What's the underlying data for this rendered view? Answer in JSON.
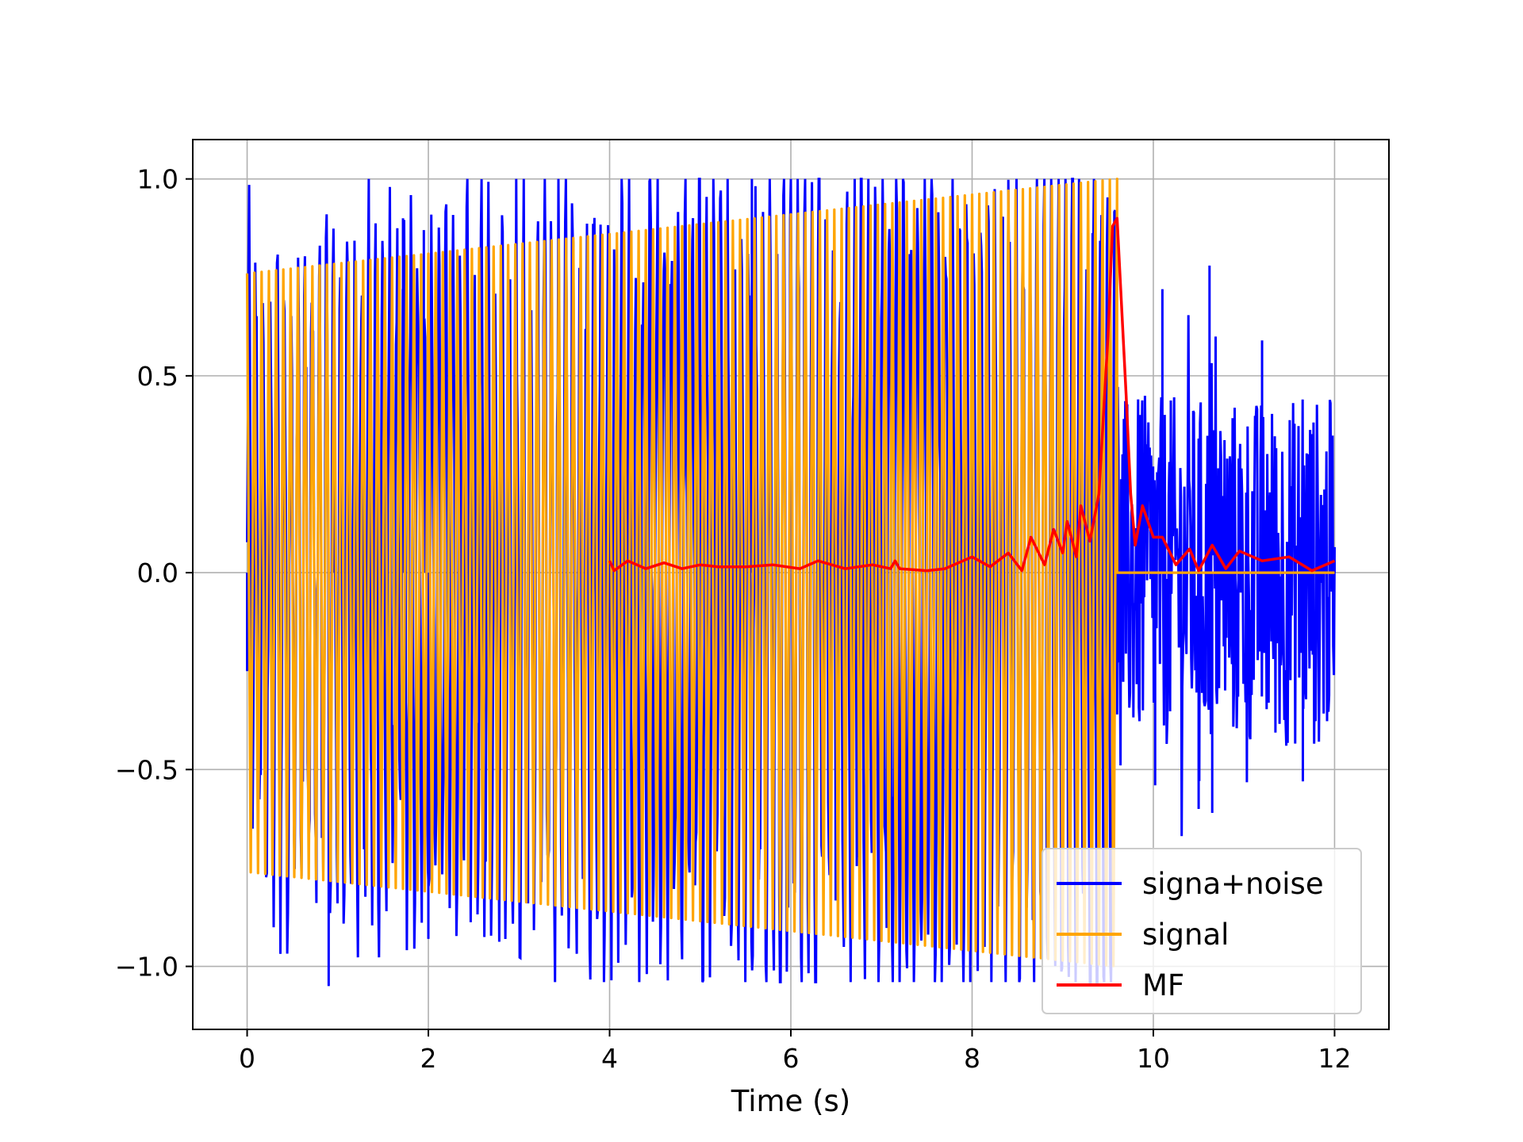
{
  "chart_data": {
    "type": "line",
    "title": "",
    "xlabel": "Time (s)",
    "ylabel": "",
    "xlim": [
      -0.6,
      12.6
    ],
    "ylim": [
      -1.16,
      1.1
    ],
    "xticks": [
      0,
      2,
      4,
      6,
      8,
      10,
      12
    ],
    "xtick_labels": [
      "0",
      "2",
      "4",
      "6",
      "8",
      "10",
      "12"
    ],
    "yticks": [
      -1.0,
      -0.5,
      0.0,
      0.5,
      1.0
    ],
    "ytick_labels": [
      "−1.0",
      "−0.5",
      "0.0",
      "0.5",
      "1.0"
    ],
    "grid": true,
    "legend_position": "lower-right",
    "series": [
      {
        "name": "signa+noise",
        "color": "#0000ff",
        "description_points": [
          [
            0.0,
            -0.25
          ],
          [
            0.9,
            -1.05
          ],
          [
            0.95,
            0.82
          ],
          [
            1.72,
            0.9
          ],
          [
            1.95,
            0.87
          ],
          [
            2.0,
            -0.93
          ],
          [
            3.1,
            -0.84
          ],
          [
            5.57,
            1.0
          ],
          [
            9.6,
            0.27
          ],
          [
            9.6,
            -0.36
          ],
          [
            10.02,
            -0.54
          ],
          [
            10.1,
            0.72
          ],
          [
            10.5,
            -0.6
          ],
          [
            10.62,
            0.78
          ],
          [
            10.65,
            -0.61
          ],
          [
            11.2,
            0.59
          ],
          [
            11.65,
            -0.53
          ],
          [
            12.0,
            0.03
          ]
        ]
      },
      {
        "name": "signal",
        "color": "#ffa500",
        "envelope_start": 0.76,
        "envelope_end": 1.0,
        "t_start": 0.0,
        "t_end": 9.6,
        "cycles": 120,
        "after_value": 0.0,
        "after_end": 12.0
      },
      {
        "name": "MF",
        "color": "#ff0000",
        "x": [
          4.0,
          4.05,
          4.2,
          4.4,
          4.6,
          4.8,
          5.0,
          5.2,
          5.5,
          5.8,
          6.1,
          6.3,
          6.6,
          6.9,
          7.1,
          7.15,
          7.2,
          7.5,
          7.7,
          8.0,
          8.2,
          8.4,
          8.55,
          8.65,
          8.8,
          8.9,
          9.0,
          9.05,
          9.15,
          9.2,
          9.3,
          9.4,
          9.5,
          9.55,
          9.6,
          9.7,
          9.75,
          9.8,
          9.88,
          10.0,
          10.1,
          10.25,
          10.4,
          10.5,
          10.65,
          10.8,
          10.95,
          11.2,
          11.5,
          11.75,
          12.0
        ],
        "y": [
          0.03,
          0.005,
          0.03,
          0.01,
          0.025,
          0.01,
          0.02,
          0.015,
          0.015,
          0.02,
          0.01,
          0.03,
          0.01,
          0.02,
          0.01,
          0.03,
          0.01,
          0.005,
          0.01,
          0.04,
          0.015,
          0.05,
          0.005,
          0.09,
          0.02,
          0.11,
          0.05,
          0.13,
          0.04,
          0.17,
          0.08,
          0.2,
          0.6,
          0.88,
          0.9,
          0.45,
          0.2,
          0.07,
          0.17,
          0.09,
          0.09,
          0.02,
          0.06,
          0.005,
          0.07,
          0.01,
          0.055,
          0.03,
          0.04,
          0.005,
          0.03
        ]
      }
    ]
  }
}
